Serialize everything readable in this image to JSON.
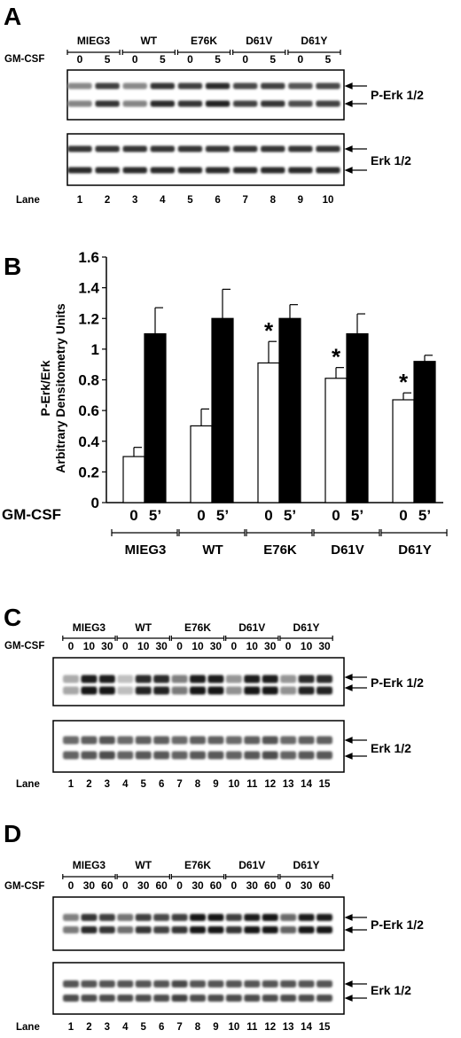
{
  "panel_a": {
    "letter": "A",
    "groups": [
      "MIEG3",
      "WT",
      "E76K",
      "D61V",
      "D61Y"
    ],
    "treatment_label": "GM-CSF",
    "doses": [
      "0",
      "5",
      "0",
      "5",
      "0",
      "5",
      "0",
      "5",
      "0",
      "5"
    ],
    "blot_top_label": "P-Erk 1/2",
    "blot_bottom_label": "Erk 1/2",
    "lane_label": "Lane",
    "lanes": [
      "1",
      "2",
      "3",
      "4",
      "5",
      "6",
      "7",
      "8",
      "9",
      "10"
    ],
    "top_band_strength": [
      0.45,
      0.8,
      0.45,
      0.85,
      0.8,
      0.9,
      0.75,
      0.8,
      0.7,
      0.75
    ],
    "bottom_band_strength": [
      0.85,
      0.85,
      0.85,
      0.85,
      0.85,
      0.85,
      0.85,
      0.85,
      0.85,
      0.85
    ]
  },
  "panel_b": {
    "letter": "B",
    "chart_data": {
      "type": "bar",
      "categories": [
        "MIEG3",
        "WT",
        "E76K",
        "D61V",
        "D61Y"
      ],
      "treatment_label": "GM-CSF",
      "bar_labels": [
        "0",
        "5’"
      ],
      "ylabel_line1": "P-Erk/Erk",
      "ylabel_line2": "Arbitrary Densitometry Units",
      "ylim": [
        0,
        1.6
      ],
      "yticks": [
        "0",
        "0.2",
        "0.4",
        "0.6",
        "0.8",
        "1",
        "1.2",
        "1.4",
        "1.6"
      ],
      "series": [
        {
          "values": [
            0.3,
            0.5,
            0.91,
            0.81,
            0.67
          ],
          "errors": [
            0.06,
            0.11,
            0.14,
            0.07,
            0.045
          ],
          "fill": "#ffffff"
        },
        {
          "values": [
            1.1,
            1.2,
            1.2,
            1.1,
            0.92
          ],
          "errors": [
            0.17,
            0.19,
            0.09,
            0.13,
            0.04
          ],
          "fill": "#000000"
        }
      ],
      "significance_marker": "*",
      "significant": [
        false,
        false,
        true,
        true,
        true
      ],
      "grid": false
    }
  },
  "panel_c": {
    "letter": "C",
    "groups": [
      "MIEG3",
      "WT",
      "E76K",
      "D61V",
      "D61Y"
    ],
    "treatment_label": "GM-CSF",
    "doses": [
      "0",
      "10",
      "30",
      "0",
      "10",
      "30",
      "0",
      "10",
      "30",
      "0",
      "10",
      "30",
      "0",
      "10",
      "30"
    ],
    "blot_top_label": "P-Erk 1/2",
    "blot_bottom_label": "Erk 1/2",
    "lane_label": "Lane",
    "lanes": [
      "1",
      "2",
      "3",
      "4",
      "5",
      "6",
      "7",
      "8",
      "9",
      "10",
      "11",
      "12",
      "13",
      "14",
      "15"
    ],
    "top_band_strength": [
      0.3,
      0.95,
      0.95,
      0.2,
      0.9,
      0.9,
      0.5,
      0.95,
      0.95,
      0.4,
      0.95,
      0.95,
      0.4,
      0.9,
      0.9
    ],
    "bottom_band_strength": [
      0.6,
      0.65,
      0.7,
      0.6,
      0.65,
      0.65,
      0.6,
      0.65,
      0.65,
      0.6,
      0.65,
      0.7,
      0.6,
      0.65,
      0.65
    ]
  },
  "panel_d": {
    "letter": "D",
    "groups": [
      "MIEG3",
      "WT",
      "E76K",
      "D61V",
      "D61Y"
    ],
    "treatment_label": "GM-CSF",
    "doses": [
      "0",
      "30",
      "60",
      "0",
      "30",
      "60",
      "0",
      "30",
      "60",
      "0",
      "30",
      "60",
      "0",
      "30",
      "60"
    ],
    "blot_top_label": "P-Erk 1/2",
    "blot_bottom_label": "Erk 1/2",
    "lane_label": "Lane",
    "lanes": [
      "1",
      "2",
      "3",
      "4",
      "5",
      "6",
      "7",
      "8",
      "9",
      "10",
      "11",
      "12",
      "13",
      "14",
      "15"
    ],
    "top_band_strength": [
      0.5,
      0.85,
      0.8,
      0.55,
      0.8,
      0.75,
      0.8,
      0.98,
      0.98,
      0.8,
      0.95,
      0.98,
      0.6,
      0.95,
      0.95
    ],
    "bottom_band_strength": [
      0.7,
      0.7,
      0.7,
      0.7,
      0.7,
      0.7,
      0.75,
      0.7,
      0.7,
      0.7,
      0.7,
      0.7,
      0.7,
      0.7,
      0.7
    ]
  }
}
